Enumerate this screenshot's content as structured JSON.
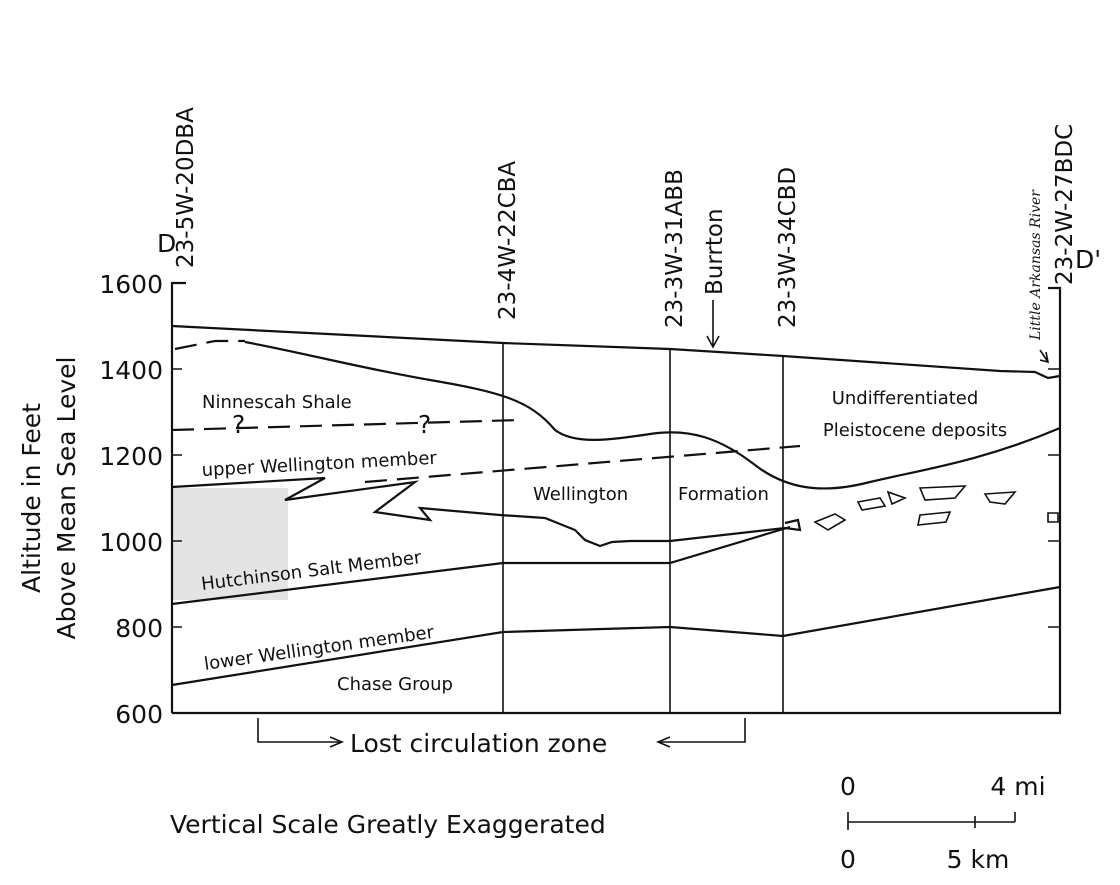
{
  "section": {
    "left_end": "D",
    "right_end": "D'"
  },
  "wells": [
    "23-5W-20DBA",
    "23-4W-22CBA",
    "23-3W-31ABB",
    "23-3W-34CBD",
    "23-2W-27BDC"
  ],
  "places": {
    "town": "Burrton",
    "river": "Little Arkansas River"
  },
  "axis": {
    "title_lines": [
      "Altitude in Feet",
      "Above Mean Sea Level"
    ],
    "ticks": [
      1600,
      1400,
      1200,
      1000,
      800,
      600
    ]
  },
  "units": {
    "ninnescah": "Ninnescah Shale",
    "question_1": "?",
    "question_2": "?",
    "upper_wellington": "upper Wellington member",
    "wellington": "Wellington",
    "formation": "Formation",
    "undiff_1": "Undifferentiated",
    "undiff_2": "Pleistocene deposits",
    "hutchinson": "Hutchinson Salt Member",
    "lower_wellington": "lower Wellington member",
    "chase": "Chase Group"
  },
  "notes": {
    "lost_circulation": "Lost circulation zone",
    "vertical_scale": "Vertical Scale Greatly Exaggerated"
  },
  "scale_bar": {
    "mi_zero": "0",
    "mi_label": "4 mi",
    "km_zero": "0",
    "km_label": "5 km"
  }
}
